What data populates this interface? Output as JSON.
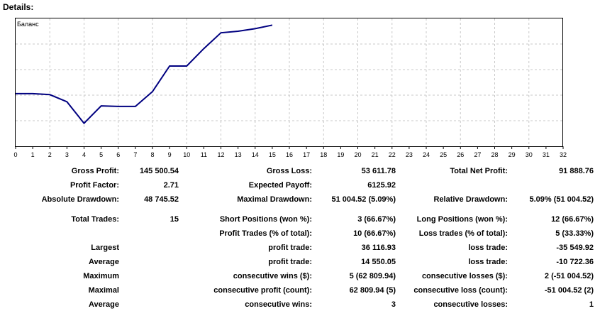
{
  "details_title": "Details:",
  "chart": {
    "series_label": "Баланс",
    "x_ticks": [
      "0",
      "1",
      "2",
      "3",
      "4",
      "5",
      "6",
      "7",
      "8",
      "9",
      "10",
      "11",
      "12",
      "13",
      "14",
      "15",
      "16",
      "17",
      "18",
      "19",
      "20",
      "21",
      "22",
      "23",
      "24",
      "25",
      "26",
      "27",
      "28",
      "29",
      "30",
      "31",
      "32"
    ],
    "line_color": "#000080"
  },
  "chart_data": {
    "type": "line",
    "title": "",
    "x": [
      0,
      1,
      2,
      3,
      4,
      5,
      6,
      7,
      8,
      9,
      10,
      11,
      12,
      13,
      14,
      15
    ],
    "series": [
      {
        "name": "Баланс",
        "values": [
          0.515,
          0.515,
          0.505,
          0.435,
          0.225,
          0.395,
          0.39,
          0.39,
          0.535,
          0.785,
          0.785,
          0.955,
          1.11,
          1.125,
          1.15,
          1.185
        ]
      }
    ],
    "xlim": [
      0,
      32
    ],
    "grid": true
  },
  "stats": {
    "gross_profit": {
      "label": "Gross Profit:",
      "value": "145 500.54"
    },
    "profit_factor": {
      "label": "Profit Factor:",
      "value": "2.71"
    },
    "absolute_drawdown": {
      "label": "Absolute Drawdown:",
      "value": "48 745.52"
    },
    "total_trades": {
      "label": "Total Trades:",
      "value": "15"
    },
    "largest": {
      "label": "Largest"
    },
    "average": {
      "label": "Average"
    },
    "maximum": {
      "label": "Maximum"
    },
    "maximal": {
      "label": "Maximal"
    },
    "average2": {
      "label": "Average"
    },
    "gross_loss": {
      "label": "Gross Loss:",
      "value": "53 611.78"
    },
    "expected_payoff": {
      "label": "Expected Payoff:",
      "value": "6125.92"
    },
    "maximal_drawdown": {
      "label": "Maximal Drawdown:",
      "value": "51 004.52 (5.09%)"
    },
    "short_positions": {
      "label": "Short Positions (won %):",
      "value": "3 (66.67%)"
    },
    "profit_trades": {
      "label": "Profit Trades (% of total):",
      "value": "10 (66.67%)"
    },
    "largest_profit": {
      "label": "profit trade:",
      "value": "36 116.93"
    },
    "average_profit": {
      "label": "profit trade:",
      "value": "14 550.05"
    },
    "cons_wins_money": {
      "label": "consecutive wins ($):",
      "value": "5 (62 809.94)"
    },
    "cons_profit_count": {
      "label": "consecutive profit (count):",
      "value": "62 809.94 (5)"
    },
    "avg_cons_wins": {
      "label": "consecutive wins:",
      "value": "3"
    },
    "total_net_profit": {
      "label": "Total Net Profit:",
      "value": "91 888.76"
    },
    "relative_drawdown": {
      "label": "Relative Drawdown:",
      "value": "5.09% (51 004.52)"
    },
    "long_positions": {
      "label": "Long Positions (won %):",
      "value": "12 (66.67%)"
    },
    "loss_trades": {
      "label": "Loss trades (% of total):",
      "value": "5 (33.33%)"
    },
    "largest_loss": {
      "label": "loss trade:",
      "value": "-35 549.92"
    },
    "average_loss": {
      "label": "loss trade:",
      "value": "-10 722.36"
    },
    "cons_losses_money": {
      "label": "consecutive losses ($):",
      "value": "2 (-51 004.52)"
    },
    "cons_loss_count": {
      "label": "consecutive loss (count):",
      "value": "-51 004.52 (2)"
    },
    "avg_cons_losses": {
      "label": "consecutive losses:",
      "value": "1"
    }
  }
}
